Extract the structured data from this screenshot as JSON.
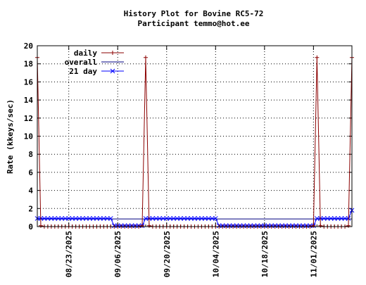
{
  "chart_data": {
    "type": "line",
    "title": "History Plot for Bovine RC5-72",
    "subtitle": "Participant temmo@hot.ee",
    "ylabel": "Rate (kkeys/sec)",
    "xlabel": "",
    "ylim": [
      0,
      20
    ],
    "yticks": [
      "0",
      "2",
      "4",
      "6",
      "8",
      "10",
      "12",
      "14",
      "16",
      "18",
      "20"
    ],
    "xlim": [
      "2025-08-14",
      "2025-11-12"
    ],
    "xtick_dates": [
      "2025-08-23",
      "2025-09-06",
      "2025-09-20",
      "2025-10-04",
      "2025-10-18",
      "2025-11-01"
    ],
    "xtick_labels": [
      "08/23/2025",
      "09/06/2025",
      "09/20/2025",
      "10/04/2025",
      "10/18/2025",
      "11/01/2025"
    ],
    "grid": true,
    "legend_placement": "top-left",
    "series": [
      {
        "name": "daily",
        "color": "#8b0000",
        "marker": "plus",
        "points": [
          [
            "2025-08-14",
            18.7
          ],
          [
            "2025-08-15",
            0.1
          ],
          [
            "2025-08-16",
            0
          ],
          [
            "2025-08-17",
            0
          ],
          [
            "2025-08-18",
            0
          ],
          [
            "2025-08-19",
            0
          ],
          [
            "2025-08-20",
            0
          ],
          [
            "2025-08-21",
            0
          ],
          [
            "2025-08-22",
            0
          ],
          [
            "2025-08-23",
            0
          ],
          [
            "2025-08-24",
            0
          ],
          [
            "2025-08-25",
            0
          ],
          [
            "2025-08-26",
            0
          ],
          [
            "2025-08-27",
            0
          ],
          [
            "2025-08-28",
            0
          ],
          [
            "2025-08-29",
            0
          ],
          [
            "2025-08-30",
            0
          ],
          [
            "2025-08-31",
            0
          ],
          [
            "2025-09-01",
            0
          ],
          [
            "2025-09-02",
            0
          ],
          [
            "2025-09-03",
            0
          ],
          [
            "2025-09-04",
            0
          ],
          [
            "2025-09-05",
            0
          ],
          [
            "2025-09-06",
            0
          ],
          [
            "2025-09-07",
            0
          ],
          [
            "2025-09-08",
            0
          ],
          [
            "2025-09-09",
            0
          ],
          [
            "2025-09-10",
            0
          ],
          [
            "2025-09-11",
            0
          ],
          [
            "2025-09-12",
            0
          ],
          [
            "2025-09-13",
            0.1
          ],
          [
            "2025-09-14",
            18.7
          ],
          [
            "2025-09-15",
            0.1
          ],
          [
            "2025-09-16",
            0
          ],
          [
            "2025-09-17",
            0
          ],
          [
            "2025-09-18",
            0
          ],
          [
            "2025-09-19",
            0
          ],
          [
            "2025-09-20",
            0
          ],
          [
            "2025-09-21",
            0
          ],
          [
            "2025-09-22",
            0
          ],
          [
            "2025-09-23",
            0
          ],
          [
            "2025-09-24",
            0
          ],
          [
            "2025-09-25",
            0
          ],
          [
            "2025-09-26",
            0
          ],
          [
            "2025-09-27",
            0
          ],
          [
            "2025-09-28",
            0
          ],
          [
            "2025-09-29",
            0
          ],
          [
            "2025-09-30",
            0
          ],
          [
            "2025-10-01",
            0
          ],
          [
            "2025-10-02",
            0
          ],
          [
            "2025-10-03",
            0
          ],
          [
            "2025-10-04",
            0
          ],
          [
            "2025-10-05",
            0
          ],
          [
            "2025-10-06",
            0
          ],
          [
            "2025-10-07",
            0
          ],
          [
            "2025-10-08",
            0
          ],
          [
            "2025-10-09",
            0
          ],
          [
            "2025-10-10",
            0
          ],
          [
            "2025-10-11",
            0
          ],
          [
            "2025-10-12",
            0
          ],
          [
            "2025-10-13",
            0
          ],
          [
            "2025-10-14",
            0
          ],
          [
            "2025-10-15",
            0
          ],
          [
            "2025-10-16",
            0
          ],
          [
            "2025-10-17",
            0
          ],
          [
            "2025-10-18",
            0
          ],
          [
            "2025-10-19",
            0
          ],
          [
            "2025-10-20",
            0
          ],
          [
            "2025-10-21",
            0
          ],
          [
            "2025-10-22",
            0
          ],
          [
            "2025-10-23",
            0
          ],
          [
            "2025-10-24",
            0
          ],
          [
            "2025-10-25",
            0
          ],
          [
            "2025-10-26",
            0
          ],
          [
            "2025-10-27",
            0
          ],
          [
            "2025-10-28",
            0
          ],
          [
            "2025-10-29",
            0
          ],
          [
            "2025-10-30",
            0
          ],
          [
            "2025-10-31",
            0
          ],
          [
            "2025-11-01",
            0.1
          ],
          [
            "2025-11-02",
            18.7
          ],
          [
            "2025-11-03",
            0.1
          ],
          [
            "2025-11-04",
            0
          ],
          [
            "2025-11-05",
            0
          ],
          [
            "2025-11-06",
            0
          ],
          [
            "2025-11-07",
            0
          ],
          [
            "2025-11-08",
            0
          ],
          [
            "2025-11-09",
            0
          ],
          [
            "2025-11-10",
            0
          ],
          [
            "2025-11-11",
            0.1
          ],
          [
            "2025-11-12",
            18.7
          ]
        ]
      },
      {
        "name": "overall",
        "color": "#000080",
        "marker": "none",
        "points": [
          [
            "2025-08-14",
            0.85
          ],
          [
            "2025-11-12",
            0.85
          ]
        ]
      },
      {
        "name": "21 day",
        "color": "#0000ff",
        "marker": "cross",
        "points": [
          [
            "2025-08-14",
            0.9
          ],
          [
            "2025-08-15",
            0.9
          ],
          [
            "2025-08-16",
            0.9
          ],
          [
            "2025-08-17",
            0.9
          ],
          [
            "2025-08-18",
            0.9
          ],
          [
            "2025-08-19",
            0.9
          ],
          [
            "2025-08-20",
            0.9
          ],
          [
            "2025-08-21",
            0.9
          ],
          [
            "2025-08-22",
            0.9
          ],
          [
            "2025-08-23",
            0.9
          ],
          [
            "2025-08-24",
            0.9
          ],
          [
            "2025-08-25",
            0.9
          ],
          [
            "2025-08-26",
            0.9
          ],
          [
            "2025-08-27",
            0.9
          ],
          [
            "2025-08-28",
            0.9
          ],
          [
            "2025-08-29",
            0.9
          ],
          [
            "2025-08-30",
            0.9
          ],
          [
            "2025-08-31",
            0.9
          ],
          [
            "2025-09-01",
            0.9
          ],
          [
            "2025-09-02",
            0.9
          ],
          [
            "2025-09-03",
            0.9
          ],
          [
            "2025-09-04",
            0.9
          ],
          [
            "2025-09-05",
            0.1
          ],
          [
            "2025-09-06",
            0.1
          ],
          [
            "2025-09-07",
            0.1
          ],
          [
            "2025-09-08",
            0.1
          ],
          [
            "2025-09-09",
            0.1
          ],
          [
            "2025-09-10",
            0.1
          ],
          [
            "2025-09-11",
            0.1
          ],
          [
            "2025-09-12",
            0.1
          ],
          [
            "2025-09-13",
            0.1
          ],
          [
            "2025-09-14",
            0.9
          ],
          [
            "2025-09-15",
            0.9
          ],
          [
            "2025-09-16",
            0.9
          ],
          [
            "2025-09-17",
            0.9
          ],
          [
            "2025-09-18",
            0.9
          ],
          [
            "2025-09-19",
            0.9
          ],
          [
            "2025-09-20",
            0.9
          ],
          [
            "2025-09-21",
            0.9
          ],
          [
            "2025-09-22",
            0.9
          ],
          [
            "2025-09-23",
            0.9
          ],
          [
            "2025-09-24",
            0.9
          ],
          [
            "2025-09-25",
            0.9
          ],
          [
            "2025-09-26",
            0.9
          ],
          [
            "2025-09-27",
            0.9
          ],
          [
            "2025-09-28",
            0.9
          ],
          [
            "2025-09-29",
            0.9
          ],
          [
            "2025-09-30",
            0.9
          ],
          [
            "2025-10-01",
            0.9
          ],
          [
            "2025-10-02",
            0.9
          ],
          [
            "2025-10-03",
            0.9
          ],
          [
            "2025-10-04",
            0.9
          ],
          [
            "2025-10-05",
            0.1
          ],
          [
            "2025-10-06",
            0.1
          ],
          [
            "2025-10-07",
            0.1
          ],
          [
            "2025-10-08",
            0.1
          ],
          [
            "2025-10-09",
            0.1
          ],
          [
            "2025-10-10",
            0.1
          ],
          [
            "2025-10-11",
            0.1
          ],
          [
            "2025-10-12",
            0.1
          ],
          [
            "2025-10-13",
            0.1
          ],
          [
            "2025-10-14",
            0.1
          ],
          [
            "2025-10-15",
            0.1
          ],
          [
            "2025-10-16",
            0.1
          ],
          [
            "2025-10-17",
            0.1
          ],
          [
            "2025-10-18",
            0.1
          ],
          [
            "2025-10-19",
            0.1
          ],
          [
            "2025-10-20",
            0.1
          ],
          [
            "2025-10-21",
            0.1
          ],
          [
            "2025-10-22",
            0.1
          ],
          [
            "2025-10-23",
            0.1
          ],
          [
            "2025-10-24",
            0.1
          ],
          [
            "2025-10-25",
            0.1
          ],
          [
            "2025-10-26",
            0.1
          ],
          [
            "2025-10-27",
            0.1
          ],
          [
            "2025-10-28",
            0.1
          ],
          [
            "2025-10-29",
            0.1
          ],
          [
            "2025-10-30",
            0.1
          ],
          [
            "2025-10-31",
            0.1
          ],
          [
            "2025-11-01",
            0.1
          ],
          [
            "2025-11-02",
            0.9
          ],
          [
            "2025-11-03",
            0.9
          ],
          [
            "2025-11-04",
            0.9
          ],
          [
            "2025-11-05",
            0.9
          ],
          [
            "2025-11-06",
            0.9
          ],
          [
            "2025-11-07",
            0.9
          ],
          [
            "2025-11-08",
            0.9
          ],
          [
            "2025-11-09",
            0.9
          ],
          [
            "2025-11-10",
            0.9
          ],
          [
            "2025-11-11",
            0.9
          ],
          [
            "2025-11-12",
            1.8
          ]
        ]
      }
    ]
  }
}
